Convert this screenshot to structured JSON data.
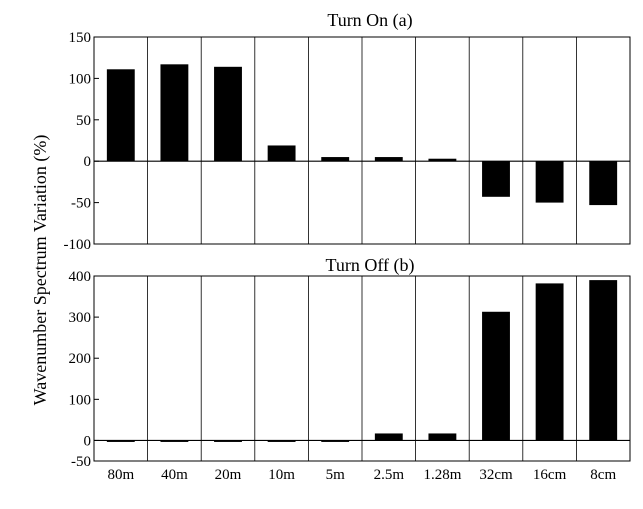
{
  "chart_data": [
    {
      "type": "bar",
      "title": "Turn On (a)",
      "ylabel": "Wavenumber Spectrum Variation (%)",
      "xlabel": "",
      "categories": [
        "80m",
        "40m",
        "20m",
        "10m",
        "5m",
        "2.5m",
        "1.28m",
        "32cm",
        "16cm",
        "8cm"
      ],
      "values": [
        111,
        117,
        114,
        19,
        5,
        5,
        3,
        -43,
        -50,
        -53
      ],
      "ylim": [
        -100,
        150
      ],
      "yticks": [
        -100,
        -50,
        0,
        50,
        100,
        150
      ],
      "grid": "vertical separators between categories",
      "bar_color": "#000000"
    },
    {
      "type": "bar",
      "title": "Turn Off (b)",
      "ylabel": "Wavenumber Spectrum Variation (%)",
      "xlabel": "",
      "categories": [
        "80m",
        "40m",
        "20m",
        "10m",
        "5m",
        "2.5m",
        "1.28m",
        "32cm",
        "16cm",
        "8cm"
      ],
      "values": [
        -2,
        -2,
        -2,
        -3,
        -1,
        17,
        17,
        313,
        382,
        390
      ],
      "ylim": [
        -50,
        400
      ],
      "yticks": [
        -50,
        0,
        100,
        200,
        300,
        400
      ],
      "grid": "vertical separators between categories",
      "bar_color": "#000000"
    }
  ]
}
